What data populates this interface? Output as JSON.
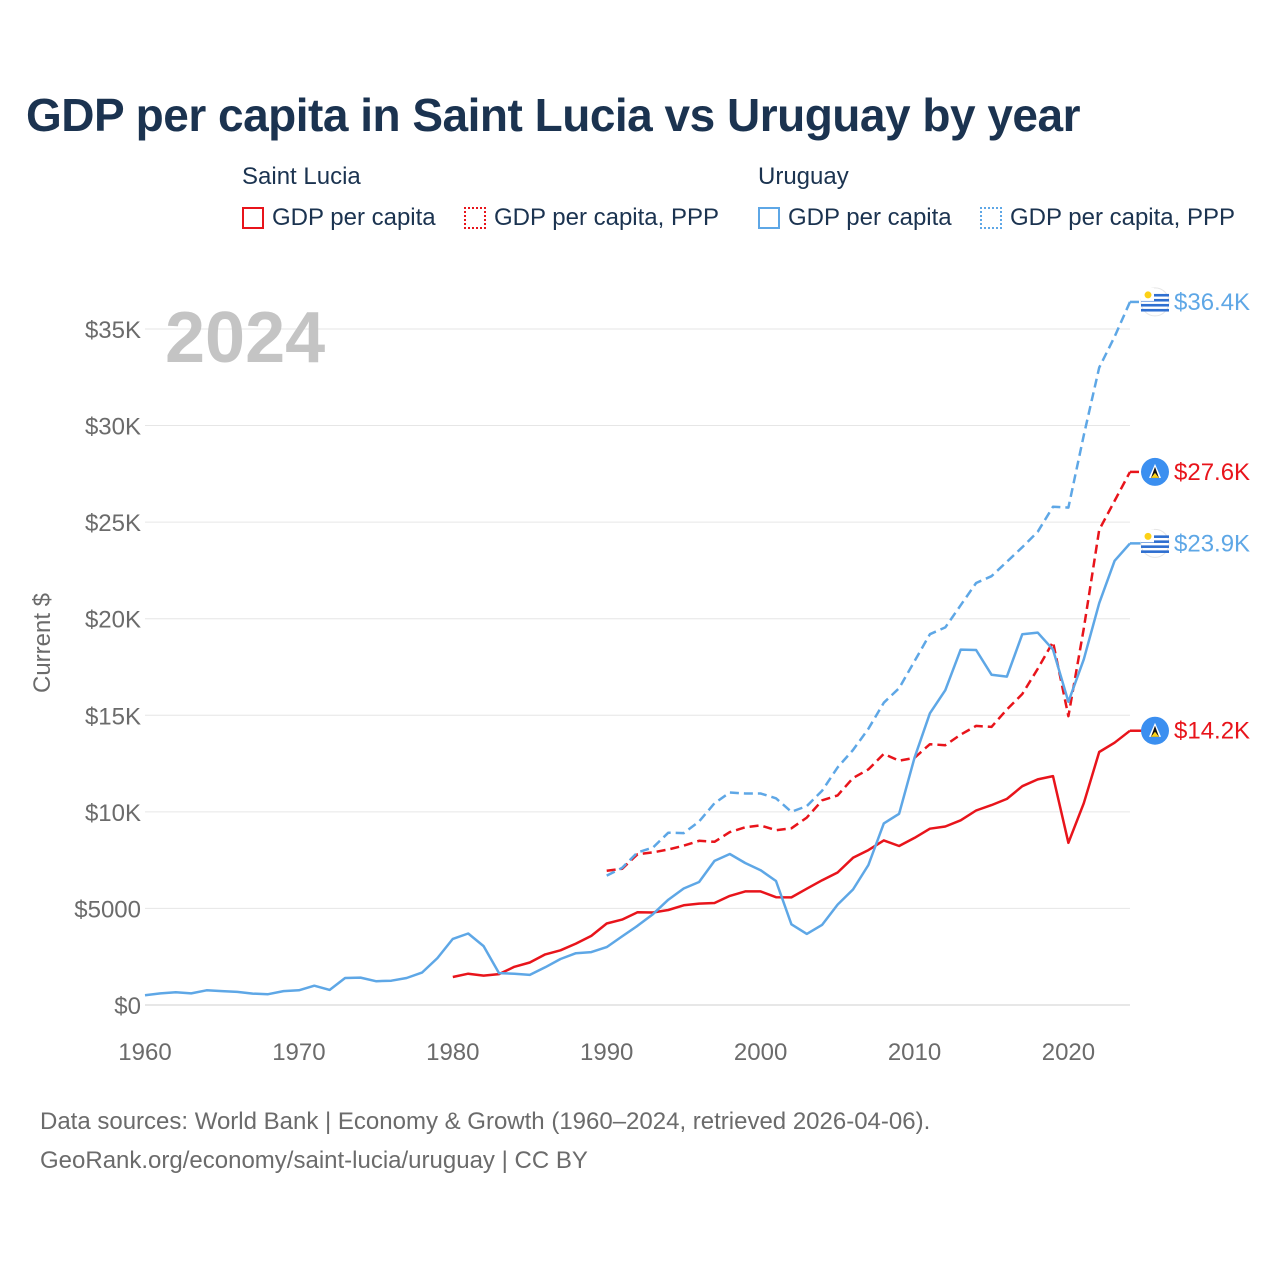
{
  "title": "GDP per capita in Saint Lucia vs Uruguay by year",
  "legend": {
    "groups": [
      {
        "name": "Saint Lucia",
        "items": [
          "GDP per capita",
          "GDP per capita, PPP"
        ],
        "color": "#e8141b"
      },
      {
        "name": "Uruguay",
        "items": [
          "GDP per capita",
          "GDP per capita, PPP"
        ],
        "color": "#5ea7e6"
      }
    ]
  },
  "source": {
    "line1": "Data sources: World Bank | Economy & Growth (1960–2024, retrieved 2026-04-06).",
    "line2": "GeoRank.org/economy/saint-lucia/uruguay | CC BY"
  },
  "chart_data": {
    "type": "line",
    "title": "GDP per capita in Saint Lucia vs Uruguay by year",
    "year_label": "2024",
    "xlabel": "",
    "ylabel": "Current $",
    "xlim": [
      1960,
      2024
    ],
    "ylim": [
      0,
      36500
    ],
    "x_ticks": [
      1960,
      1970,
      1980,
      1990,
      2000,
      2010,
      2020
    ],
    "y_ticks": [
      {
        "value": 0,
        "label": "$0"
      },
      {
        "value": 5000,
        "label": "$5000"
      },
      {
        "value": 10000,
        "label": "$10K"
      },
      {
        "value": 15000,
        "label": "$15K"
      },
      {
        "value": 20000,
        "label": "$20K"
      },
      {
        "value": 25000,
        "label": "$25K"
      },
      {
        "value": 30000,
        "label": "$30K"
      },
      {
        "value": 35000,
        "label": "$35K"
      }
    ],
    "grid": true,
    "series": [
      {
        "name": "Saint Lucia GDP per capita",
        "country": "Saint Lucia",
        "color": "#e8141b",
        "dashed": false,
        "end_label": "$14.2K",
        "flag": "saint-lucia",
        "points": [
          [
            1980,
            1450
          ],
          [
            1981,
            1620
          ],
          [
            1982,
            1520
          ],
          [
            1983,
            1600
          ],
          [
            1984,
            1980
          ],
          [
            1985,
            2200
          ],
          [
            1986,
            2620
          ],
          [
            1987,
            2830
          ],
          [
            1988,
            3180
          ],
          [
            1989,
            3580
          ],
          [
            1990,
            4220
          ],
          [
            1991,
            4420
          ],
          [
            1992,
            4800
          ],
          [
            1993,
            4790
          ],
          [
            1994,
            4920
          ],
          [
            1995,
            5160
          ],
          [
            1996,
            5250
          ],
          [
            1997,
            5280
          ],
          [
            1998,
            5650
          ],
          [
            1999,
            5880
          ],
          [
            2000,
            5880
          ],
          [
            2001,
            5580
          ],
          [
            2002,
            5570
          ],
          [
            2003,
            6020
          ],
          [
            2004,
            6460
          ],
          [
            2005,
            6860
          ],
          [
            2006,
            7620
          ],
          [
            2007,
            8020
          ],
          [
            2008,
            8520
          ],
          [
            2009,
            8230
          ],
          [
            2010,
            8650
          ],
          [
            2011,
            9130
          ],
          [
            2012,
            9240
          ],
          [
            2013,
            9560
          ],
          [
            2014,
            10070
          ],
          [
            2015,
            10350
          ],
          [
            2016,
            10670
          ],
          [
            2017,
            11330
          ],
          [
            2018,
            11680
          ],
          [
            2019,
            11850
          ],
          [
            2020,
            8400
          ],
          [
            2021,
            10450
          ],
          [
            2022,
            13100
          ],
          [
            2023,
            13580
          ],
          [
            2024,
            14200
          ]
        ]
      },
      {
        "name": "Saint Lucia GDP per capita, PPP",
        "country": "Saint Lucia",
        "color": "#e8141b",
        "dashed": true,
        "end_label": "$27.6K",
        "flag": "saint-lucia",
        "points": [
          [
            1990,
            6950
          ],
          [
            1991,
            7050
          ],
          [
            1992,
            7800
          ],
          [
            1993,
            7900
          ],
          [
            1994,
            8050
          ],
          [
            1995,
            8250
          ],
          [
            1996,
            8500
          ],
          [
            1997,
            8450
          ],
          [
            1998,
            8950
          ],
          [
            1999,
            9200
          ],
          [
            2000,
            9300
          ],
          [
            2001,
            9050
          ],
          [
            2002,
            9150
          ],
          [
            2003,
            9700
          ],
          [
            2004,
            10600
          ],
          [
            2005,
            10850
          ],
          [
            2006,
            11750
          ],
          [
            2007,
            12200
          ],
          [
            2008,
            13000
          ],
          [
            2009,
            12650
          ],
          [
            2010,
            12800
          ],
          [
            2011,
            13500
          ],
          [
            2012,
            13450
          ],
          [
            2013,
            14000
          ],
          [
            2014,
            14450
          ],
          [
            2015,
            14400
          ],
          [
            2016,
            15300
          ],
          [
            2017,
            16100
          ],
          [
            2018,
            17400
          ],
          [
            2019,
            18800
          ],
          [
            2020,
            14950
          ],
          [
            2021,
            19500
          ],
          [
            2022,
            24600
          ],
          [
            2023,
            26100
          ],
          [
            2024,
            27600
          ]
        ]
      },
      {
        "name": "Uruguay GDP per capita",
        "country": "Uruguay",
        "color": "#5ea7e6",
        "dashed": false,
        "end_label": "$23.9K",
        "flag": "uruguay",
        "points": [
          [
            1960,
            500
          ],
          [
            1961,
            600
          ],
          [
            1962,
            660
          ],
          [
            1963,
            600
          ],
          [
            1964,
            760
          ],
          [
            1965,
            720
          ],
          [
            1966,
            680
          ],
          [
            1967,
            590
          ],
          [
            1968,
            560
          ],
          [
            1969,
            720
          ],
          [
            1970,
            760
          ],
          [
            1971,
            1000
          ],
          [
            1972,
            780
          ],
          [
            1973,
            1400
          ],
          [
            1974,
            1420
          ],
          [
            1975,
            1230
          ],
          [
            1976,
            1260
          ],
          [
            1977,
            1400
          ],
          [
            1978,
            1680
          ],
          [
            1979,
            2430
          ],
          [
            1980,
            3420
          ],
          [
            1981,
            3700
          ],
          [
            1982,
            3050
          ],
          [
            1983,
            1650
          ],
          [
            1984,
            1620
          ],
          [
            1985,
            1560
          ],
          [
            1986,
            1950
          ],
          [
            1987,
            2380
          ],
          [
            1988,
            2680
          ],
          [
            1989,
            2740
          ],
          [
            1990,
            3000
          ],
          [
            1991,
            3550
          ],
          [
            1992,
            4100
          ],
          [
            1993,
            4700
          ],
          [
            1994,
            5450
          ],
          [
            1995,
            6030
          ],
          [
            1996,
            6370
          ],
          [
            1997,
            7460
          ],
          [
            1998,
            7820
          ],
          [
            1999,
            7350
          ],
          [
            2000,
            6980
          ],
          [
            2001,
            6420
          ],
          [
            2002,
            4180
          ],
          [
            2003,
            3680
          ],
          [
            2004,
            4150
          ],
          [
            2005,
            5200
          ],
          [
            2006,
            5980
          ],
          [
            2007,
            7250
          ],
          [
            2008,
            9400
          ],
          [
            2009,
            9900
          ],
          [
            2010,
            12800
          ],
          [
            2011,
            15100
          ],
          [
            2012,
            16300
          ],
          [
            2013,
            18400
          ],
          [
            2014,
            18380
          ],
          [
            2015,
            17100
          ],
          [
            2016,
            17000
          ],
          [
            2017,
            19200
          ],
          [
            2018,
            19280
          ],
          [
            2019,
            18400
          ],
          [
            2020,
            15700
          ],
          [
            2021,
            17900
          ],
          [
            2022,
            20800
          ],
          [
            2023,
            23000
          ],
          [
            2024,
            23900
          ]
        ]
      },
      {
        "name": "Uruguay GDP per capita, PPP",
        "country": "Uruguay",
        "color": "#5ea7e6",
        "dashed": true,
        "end_label": "$36.4K",
        "flag": "uruguay",
        "points": [
          [
            1990,
            6700
          ],
          [
            1991,
            7100
          ],
          [
            1992,
            7900
          ],
          [
            1993,
            8150
          ],
          [
            1994,
            8920
          ],
          [
            1995,
            8900
          ],
          [
            1996,
            9500
          ],
          [
            1997,
            10450
          ],
          [
            1998,
            11000
          ],
          [
            1999,
            10950
          ],
          [
            2000,
            10950
          ],
          [
            2001,
            10700
          ],
          [
            2002,
            10000
          ],
          [
            2003,
            10300
          ],
          [
            2004,
            11100
          ],
          [
            2005,
            12300
          ],
          [
            2006,
            13200
          ],
          [
            2007,
            14300
          ],
          [
            2008,
            15650
          ],
          [
            2009,
            16400
          ],
          [
            2010,
            17800
          ],
          [
            2011,
            19200
          ],
          [
            2012,
            19550
          ],
          [
            2013,
            20700
          ],
          [
            2014,
            21850
          ],
          [
            2015,
            22200
          ],
          [
            2016,
            22950
          ],
          [
            2017,
            23700
          ],
          [
            2018,
            24500
          ],
          [
            2019,
            25800
          ],
          [
            2020,
            25750
          ],
          [
            2021,
            29500
          ],
          [
            2022,
            33000
          ],
          [
            2023,
            34600
          ],
          [
            2024,
            36400
          ]
        ]
      }
    ]
  }
}
